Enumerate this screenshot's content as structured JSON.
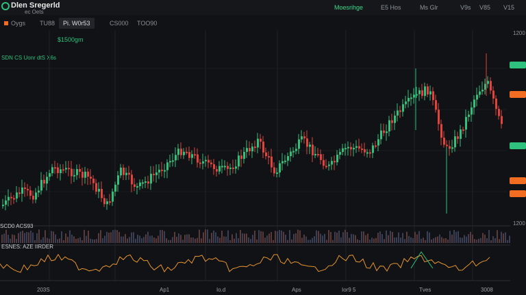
{
  "header": {
    "title": "Dlen Sregerld",
    "subtitle": "ec Oets",
    "right_items": [
      "Moesrihge",
      "E5 Hos",
      "Ms Glr",
      "V9s",
      "V85",
      "V15"
    ]
  },
  "tabs": [
    "Oygs",
    "TU88",
    "Pi. W0r53",
    "CS000",
    "TOO90"
  ],
  "legends": {
    "price": "$1500gm",
    "indicator": "SDN CS Uonr dtS X6s"
  },
  "price_axis": [
    "1200",
    "1200"
  ],
  "panes": {
    "volume_label": "SCD0 ACS93",
    "oscillator_label": "ESNES: AZE IIRDER"
  },
  "x_axis": [
    "203S",
    "Ap1",
    "Io.d",
    "Aps",
    "Ior9 5",
    "Tves",
    "3008"
  ],
  "colors": {
    "up": "#2ec27e",
    "down": "#e0443a",
    "osc_line": "#e8962e",
    "background": "#111215"
  }
}
